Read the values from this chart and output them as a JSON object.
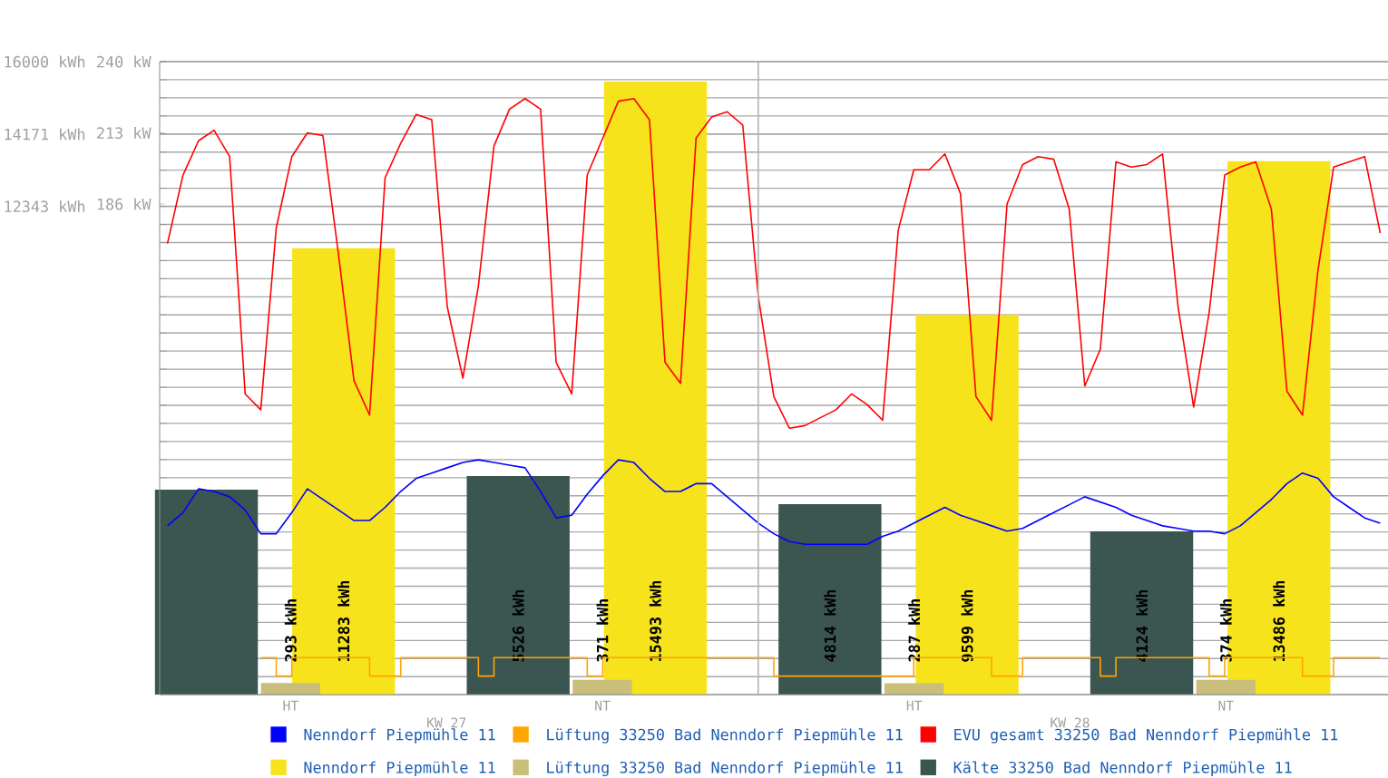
{
  "chart_data": [
    {
      "type": "bar",
      "categories": [
        "HT",
        "NT",
        "HT",
        "NT"
      ],
      "series": [
        {
          "name": "Kälte 33250 Bad Nenndorf Piepmühle 11",
          "color": "#3b5551",
          "values": [
            5180,
            5526,
            4814,
            4124
          ],
          "value_labels": [
            null,
            "5526 kWh",
            "4814 kWh",
            "4124 kWh"
          ]
        },
        {
          "name": "Lüftung 33250 Bad Nenndorf Piepmühle 11",
          "color": "#c9be7a",
          "values": [
            293,
            371,
            287,
            374
          ],
          "value_labels": [
            "293 kWh",
            "371 kWh",
            "287 kWh",
            "374 kWh"
          ]
        },
        {
          "name": "Nenndorf Piepmühle 11",
          "color": "#f7e31c",
          "values": [
            11283,
            15493,
            9599,
            13486
          ],
          "value_labels": [
            "11283 kWh",
            "15493 kWh",
            "9599 kWh",
            "13486 kWh"
          ]
        }
      ],
      "ylim": [
        0,
        16000
      ],
      "yticks": [
        {
          "value": 16000,
          "label": "16000 kWh"
        },
        {
          "value": 14171,
          "label": "14171 kWh"
        },
        {
          "value": 12343,
          "label": "12343 kWh"
        }
      ],
      "annotations": [
        "KW 27",
        "KW 28"
      ],
      "grid": "y",
      "legend": "bottom"
    },
    {
      "type": "line",
      "categories": [
        null,
        null,
        null,
        null,
        null,
        null,
        null,
        null,
        null,
        null,
        null,
        null,
        null,
        null,
        null,
        null,
        null,
        null,
        null,
        null,
        null,
        null,
        null,
        null,
        null,
        null,
        null,
        null,
        null,
        null,
        null,
        null,
        null,
        null,
        null,
        null,
        null,
        null,
        null,
        null,
        null,
        null,
        null,
        null,
        null,
        null,
        null,
        null,
        null,
        null,
        null,
        null,
        null,
        null,
        null,
        null,
        null,
        null,
        null,
        null,
        null,
        null,
        null,
        null,
        null,
        null,
        null,
        null,
        null,
        null,
        null,
        null,
        null,
        null,
        null,
        null,
        null,
        null,
        null
      ],
      "series": [
        {
          "name": "Nenndorf Piepmühle 11",
          "color": "#0000ff",
          "values": [
            64,
            69,
            78,
            77,
            75,
            70,
            61,
            61,
            69,
            78,
            74,
            70,
            66,
            66,
            71,
            77,
            82,
            84,
            86,
            88,
            89,
            88,
            87,
            86,
            77,
            67,
            68,
            76,
            83,
            89,
            88,
            82,
            77,
            77,
            80,
            80,
            75,
            70,
            65,
            61,
            58,
            57,
            57,
            57,
            57,
            57,
            60,
            62,
            65,
            68,
            71,
            68,
            66,
            64,
            62,
            63,
            66,
            69,
            72,
            75,
            73,
            71,
            68,
            66,
            64,
            63,
            62,
            62,
            61,
            64,
            69,
            74,
            80,
            84,
            82,
            75,
            71,
            67,
            65
          ]
        },
        {
          "name": "Lüftung 33250 Bad Nenndorf Piepmühle 11",
          "type": "step",
          "color": "#ffa500",
          "values": [
            null,
            null,
            null,
            null,
            null,
            null,
            14,
            7,
            14,
            14,
            14,
            14,
            14,
            7,
            7,
            14,
            14,
            14,
            14,
            14,
            7,
            14,
            14,
            14,
            14,
            14,
            14,
            7,
            14,
            14,
            14,
            14,
            14,
            14,
            14,
            14,
            14,
            14,
            14,
            7,
            7,
            7,
            7,
            7,
            7,
            7,
            7,
            7,
            14,
            14,
            14,
            14,
            14,
            7,
            7,
            14,
            14,
            14,
            14,
            14,
            7,
            14,
            14,
            14,
            14,
            14,
            14,
            7,
            14,
            14,
            14,
            14,
            14,
            7,
            7,
            14,
            14,
            14,
            14
          ]
        },
        {
          "name": "EVU gesamt 33250 Bad Nenndorf Piepmühle 11",
          "color": "#ff0000",
          "values": [
            171,
            197,
            210,
            214,
            204,
            114,
            108,
            177,
            204,
            213,
            212,
            167,
            119,
            106,
            196,
            209,
            220,
            218,
            147,
            120,
            155,
            208,
            222,
            226,
            222,
            126,
            114,
            197,
            211,
            225,
            226,
            218,
            126,
            118,
            211,
            219,
            221,
            216,
            151,
            113,
            101,
            102,
            105,
            108,
            114,
            110,
            104,
            176,
            199,
            199,
            205,
            190,
            113,
            104,
            186,
            201,
            204,
            203,
            184,
            117,
            131,
            202,
            200,
            201,
            205,
            147,
            109,
            145,
            197,
            200,
            202,
            184,
            115,
            106,
            161,
            200,
            202,
            204,
            175
          ]
        }
      ],
      "ylim": [
        0,
        240
      ],
      "yticks": [
        {
          "value": 240,
          "label": "240 kW"
        },
        {
          "value": 213,
          "label": "213 kW"
        },
        {
          "value": 186,
          "label": "186 kW"
        }
      ],
      "legend": "bottom"
    }
  ]
}
